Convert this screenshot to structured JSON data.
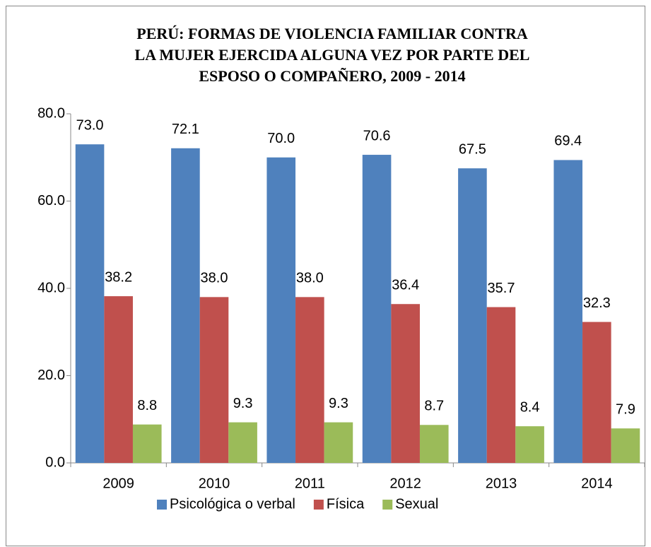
{
  "chart_data": {
    "type": "bar",
    "title": [
      "PERÚ: FORMAS DE VIOLENCIA FAMILIAR CONTRA",
      "LA MUJER EJERCIDA ALGUNA VEZ POR PARTE DEL",
      "ESPOSO O COMPAÑERO, 2009 - 2014"
    ],
    "categories": [
      "2009",
      "2010",
      "2011",
      "2012",
      "2013",
      "2014"
    ],
    "series": [
      {
        "name": "Psicológica o verbal",
        "color": "#4f81bd",
        "values": [
          73.0,
          72.1,
          70.0,
          70.6,
          67.5,
          69.4
        ],
        "value_labels": [
          "73.0",
          "72.1",
          "70.0",
          "70.6",
          "67.5",
          "69.4"
        ]
      },
      {
        "name": "Física",
        "color": "#c0504d",
        "values": [
          38.2,
          38.0,
          38.0,
          36.4,
          35.7,
          32.3
        ],
        "value_labels": [
          "38.2",
          "38.0",
          "38.0",
          "36.4",
          "35.7",
          "32.3"
        ]
      },
      {
        "name": "Sexual",
        "color": "#9bbb59",
        "values": [
          8.8,
          9.3,
          9.3,
          8.7,
          8.4,
          7.9
        ],
        "value_labels": [
          "8.8",
          "9.3",
          "9.3",
          "8.7",
          "8.4",
          "7.9"
        ]
      }
    ],
    "ylim": [
      0,
      80
    ],
    "yticks": [
      {
        "value": 0,
        "label": "0.0"
      },
      {
        "value": 20,
        "label": "20.0"
      },
      {
        "value": 40,
        "label": "40.0"
      },
      {
        "value": 60,
        "label": "60.0"
      },
      {
        "value": 80,
        "label": "80.0"
      }
    ],
    "grid": false,
    "legend": "bottom"
  }
}
